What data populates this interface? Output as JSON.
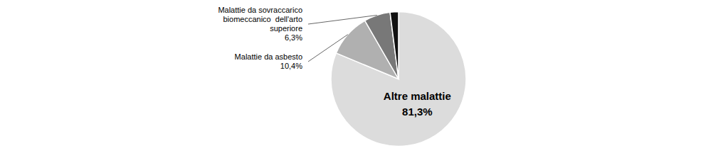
{
  "chart_data": {
    "type": "pie",
    "categories": [
      "Altre malattie",
      "Malattie da asbesto",
      "Malattie da sovraccarico\nbiomeccanico  dell'arto\nsuperiore",
      null
    ],
    "values": [
      81.3,
      10.4,
      6.3,
      2.0
    ],
    "value_labels": [
      "81,3%",
      "10,4%",
      "6,3%",
      null
    ],
    "colors": [
      "#dcdcdc",
      "#b0b0b0",
      "#787878",
      "#111111"
    ]
  }
}
